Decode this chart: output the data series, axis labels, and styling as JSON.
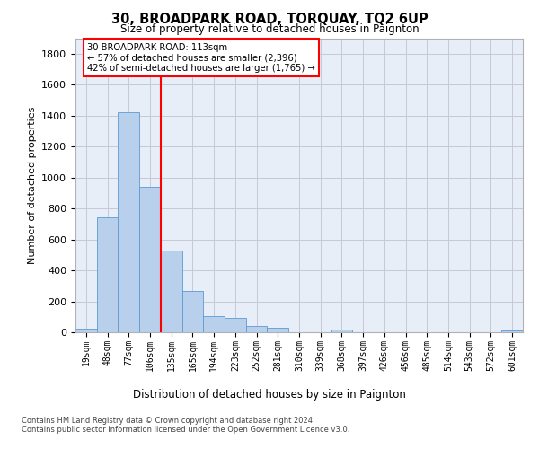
{
  "title": "30, BROADPARK ROAD, TORQUAY, TQ2 6UP",
  "subtitle": "Size of property relative to detached houses in Paignton",
  "xlabel": "Distribution of detached houses by size in Paignton",
  "ylabel": "Number of detached properties",
  "footer_line1": "Contains HM Land Registry data © Crown copyright and database right 2024.",
  "footer_line2": "Contains public sector information licensed under the Open Government Licence v3.0.",
  "categories": [
    "19sqm",
    "48sqm",
    "77sqm",
    "106sqm",
    "135sqm",
    "165sqm",
    "194sqm",
    "223sqm",
    "252sqm",
    "281sqm",
    "310sqm",
    "339sqm",
    "368sqm",
    "397sqm",
    "426sqm",
    "456sqm",
    "485sqm",
    "514sqm",
    "543sqm",
    "572sqm",
    "601sqm"
  ],
  "values": [
    22,
    742,
    1420,
    940,
    530,
    265,
    105,
    93,
    38,
    28,
    0,
    0,
    16,
    0,
    0,
    0,
    0,
    0,
    0,
    0,
    12
  ],
  "bar_color": "#b8d0eb",
  "bar_edge_color": "#5b9bd5",
  "property_line_x": 3.5,
  "property_line_color": "red",
  "annotation_line1": "30 BROADPARK ROAD: 113sqm",
  "annotation_line2": "← 57% of detached houses are smaller (2,396)",
  "annotation_line3": "42% of semi-detached houses are larger (1,765) →",
  "ylim_min": 0,
  "ylim_max": 1900,
  "yticks": [
    0,
    200,
    400,
    600,
    800,
    1000,
    1200,
    1400,
    1600,
    1800
  ],
  "plot_bg_color": "#e8eef8",
  "grid_color": "#c8c8d8"
}
